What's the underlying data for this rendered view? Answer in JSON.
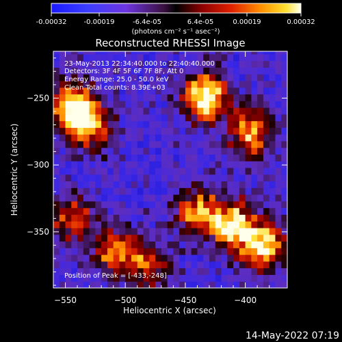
{
  "colorbar": {
    "ticks": [
      "-0.00032",
      "-0.00019",
      "-6.4e-05",
      "6.4e-05",
      "0.00019",
      "0.00032"
    ],
    "units": "(photons cm⁻² s⁻¹ asec⁻²)"
  },
  "annotations": {
    "time": "23-May-2013 22:34:40.000 to 22:40:40.000",
    "detectors": "Detectors: 3F 4F 5F 6F 7F 8F, Att 0",
    "energy": "Energy Range: 25.0 - 50.0 keV",
    "clean": "Clean     Total counts: 8.39E+03",
    "peak": "Position of Peak = [-433,-248]"
  },
  "footer": {
    "date": "14-May-2022 07:19"
  },
  "chart_data": {
    "type": "heatmap",
    "title": "Reconstructed RHESSI Image",
    "xlabel": "Heliocentric X (arcsec)",
    "ylabel": "Heliocentric Y (arcsec)",
    "xlim": [
      -560,
      -365
    ],
    "ylim": [
      -392,
      -215
    ],
    "xticks": [
      -550,
      -500,
      -450,
      -400
    ],
    "yticks": [
      -250,
      -300,
      -350
    ],
    "colorbar_range": [
      -0.00032,
      0.00032
    ],
    "colormap": "rainbow_blue_to_white",
    "peak": [
      -433,
      -248
    ],
    "bright_regions": [
      {
        "x": -545,
        "y": -255,
        "level": 0.85
      },
      {
        "x": -530,
        "y": -270,
        "level": 0.75
      },
      {
        "x": -433,
        "y": -248,
        "level": 1.0
      },
      {
        "x": -395,
        "y": -275,
        "level": 0.75
      },
      {
        "x": -410,
        "y": -345,
        "level": 0.9
      },
      {
        "x": -385,
        "y": -360,
        "level": 0.85
      },
      {
        "x": -440,
        "y": -335,
        "level": 0.7
      },
      {
        "x": -545,
        "y": -340,
        "level": 0.55
      },
      {
        "x": -510,
        "y": -365,
        "level": 0.6
      },
      {
        "x": -480,
        "y": -375,
        "level": 0.55
      }
    ]
  }
}
